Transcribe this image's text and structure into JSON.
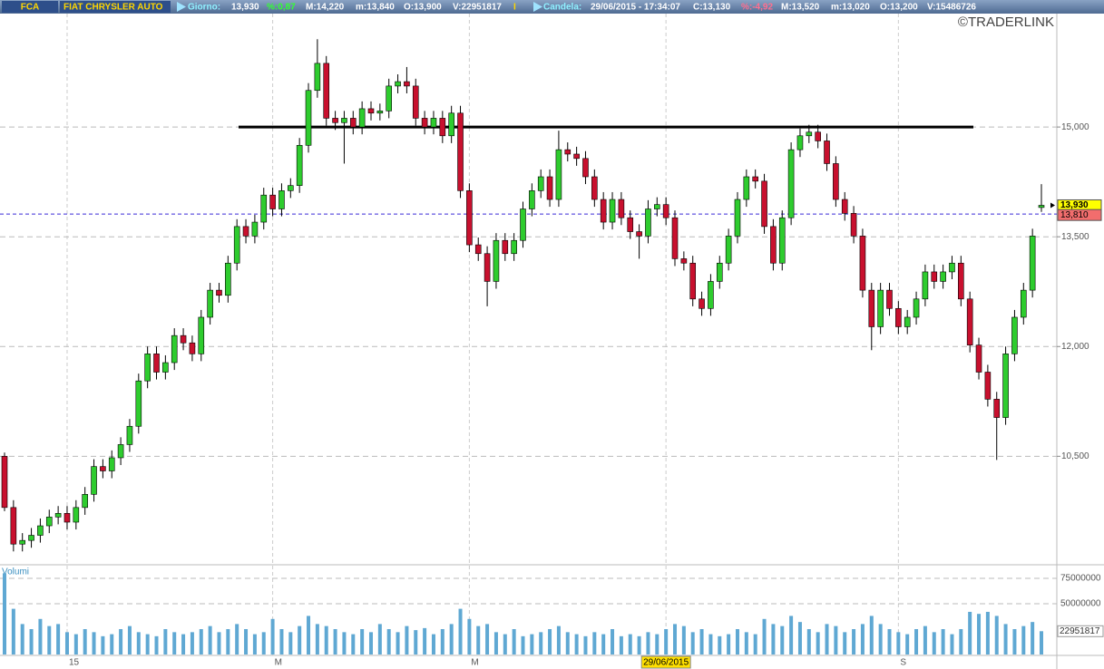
{
  "header": {
    "items": [
      {
        "text": "FCA",
        "color": "#ffd700"
      },
      {
        "text": "FIAT CHRYSLER AUTO",
        "color": "#ffd700"
      },
      {
        "text": "Giorno:",
        "color": "#8ff0ff"
      },
      {
        "text": "13,930",
        "color": "#ffffff"
      },
      {
        "text": "%:0,87",
        "color": "#33ff33"
      },
      {
        "text": "M:14,220",
        "color": "#ffffff"
      },
      {
        "text": "m:13,840",
        "color": "#ffffff"
      },
      {
        "text": "O:13,900",
        "color": "#ffffff"
      },
      {
        "text": "V:22951817",
        "color": "#ffffff"
      },
      {
        "text": "I",
        "color": "#ffd700"
      },
      {
        "text": "Candela:",
        "color": "#8ff0ff"
      },
      {
        "text": "29/06/2015 - 17:34:07",
        "color": "#ffffff"
      },
      {
        "text": "C:13,130",
        "color": "#ffffff"
      },
      {
        "text": "%:-4,92",
        "color": "#ff6f8f"
      },
      {
        "text": "M:13,520",
        "color": "#ffffff"
      },
      {
        "text": "m:13,020",
        "color": "#ffffff"
      },
      {
        "text": "O:13,200",
        "color": "#ffffff"
      },
      {
        "text": "V:15486726",
        "color": "#ffffff"
      }
    ]
  },
  "chart_data": [
    {
      "type": "candlestick",
      "watermark": "©TRADERLINK",
      "categories": [
        null,
        null,
        null,
        null,
        null,
        null,
        null,
        "15",
        null,
        null,
        null,
        null,
        null,
        null,
        null,
        null,
        null,
        null,
        null,
        null,
        null,
        null,
        null,
        null,
        null,
        null,
        null,
        null,
        null,
        null,
        "M",
        null,
        null,
        null,
        null,
        null,
        null,
        null,
        null,
        null,
        null,
        null,
        null,
        null,
        null,
        null,
        null,
        null,
        null,
        null,
        null,
        null,
        "M",
        null,
        null,
        null,
        null,
        null,
        null,
        null,
        null,
        null,
        null,
        null,
        null,
        null,
        null,
        null,
        null,
        null,
        null,
        null,
        null,
        null,
        "29/06/2015",
        null,
        null,
        null,
        null,
        null,
        null,
        null,
        null,
        null,
        null,
        null,
        null,
        null,
        null,
        null,
        null,
        null,
        null,
        null,
        null,
        null,
        null,
        null,
        null,
        null,
        "S",
        null,
        null,
        null,
        null,
        null,
        null,
        null,
        null,
        null,
        null,
        null,
        null,
        null,
        null,
        null,
        null
      ],
      "ohlc": [
        [
          10.5,
          10.55,
          9.75,
          9.8
        ],
        [
          9.8,
          9.9,
          9.2,
          9.3
        ],
        [
          9.3,
          9.45,
          9.2,
          9.35
        ],
        [
          9.35,
          9.52,
          9.25,
          9.42
        ],
        [
          9.42,
          9.65,
          9.32,
          9.55
        ],
        [
          9.55,
          9.77,
          9.45,
          9.67
        ],
        [
          9.67,
          9.82,
          9.57,
          9.72
        ],
        [
          9.72,
          9.82,
          9.5,
          9.6
        ],
        [
          9.6,
          9.9,
          9.5,
          9.8
        ],
        [
          9.8,
          10.08,
          9.7,
          9.98
        ],
        [
          9.98,
          10.46,
          9.88,
          10.36
        ],
        [
          10.36,
          10.46,
          10.2,
          10.3
        ],
        [
          10.3,
          10.58,
          10.2,
          10.48
        ],
        [
          10.48,
          10.76,
          10.38,
          10.66
        ],
        [
          10.66,
          11.01,
          10.56,
          10.91
        ],
        [
          10.91,
          11.63,
          10.81,
          11.53
        ],
        [
          11.53,
          12.0,
          11.43,
          11.9
        ],
        [
          11.9,
          12.0,
          11.55,
          11.65
        ],
        [
          11.65,
          11.88,
          11.55,
          11.78
        ],
        [
          11.78,
          12.25,
          11.68,
          12.15
        ],
        [
          12.15,
          12.25,
          11.95,
          12.05
        ],
        [
          12.05,
          12.15,
          11.8,
          11.9
        ],
        [
          11.9,
          12.5,
          11.8,
          12.4
        ],
        [
          12.4,
          12.87,
          12.3,
          12.77
        ],
        [
          12.77,
          12.87,
          12.6,
          12.7
        ],
        [
          12.7,
          13.24,
          12.6,
          13.14
        ],
        [
          13.14,
          13.74,
          13.04,
          13.64
        ],
        [
          13.64,
          13.74,
          13.41,
          13.51
        ],
        [
          13.51,
          13.8,
          13.41,
          13.7
        ],
        [
          13.7,
          14.17,
          13.6,
          14.07
        ],
        [
          14.07,
          14.17,
          13.78,
          13.88
        ],
        [
          13.88,
          14.23,
          13.78,
          14.13
        ],
        [
          14.13,
          14.3,
          14.03,
          14.2
        ],
        [
          14.2,
          14.85,
          14.1,
          14.75
        ],
        [
          14.75,
          15.6,
          14.65,
          15.5
        ],
        [
          15.5,
          16.2,
          15.4,
          15.87
        ],
        [
          15.87,
          15.97,
          15.02,
          15.12
        ],
        [
          15.12,
          15.22,
          14.96,
          15.06
        ],
        [
          15.06,
          15.22,
          14.5,
          15.12
        ],
        [
          15.12,
          15.22,
          14.9,
          15.0
        ],
        [
          15.0,
          15.35,
          14.9,
          15.25
        ],
        [
          15.25,
          15.35,
          15.09,
          15.19
        ],
        [
          15.19,
          15.32,
          15.09,
          15.22
        ],
        [
          15.22,
          15.66,
          15.12,
          15.56
        ],
        [
          15.56,
          15.72,
          15.46,
          15.62
        ],
        [
          15.62,
          15.82,
          15.46,
          15.56
        ],
        [
          15.56,
          15.66,
          15.02,
          15.12
        ],
        [
          15.12,
          15.22,
          14.9,
          15.0
        ],
        [
          15.0,
          15.22,
          14.9,
          15.12
        ],
        [
          15.12,
          15.22,
          14.78,
          14.88
        ],
        [
          14.88,
          15.29,
          14.78,
          15.19
        ],
        [
          15.19,
          15.29,
          14.03,
          14.13
        ],
        [
          14.13,
          14.23,
          13.29,
          13.39
        ],
        [
          13.39,
          13.49,
          13.17,
          13.27
        ],
        [
          13.27,
          13.37,
          12.55,
          12.89
        ],
        [
          12.89,
          13.55,
          12.79,
          13.45
        ],
        [
          13.45,
          13.55,
          13.17,
          13.27
        ],
        [
          13.27,
          13.55,
          13.17,
          13.45
        ],
        [
          13.45,
          13.98,
          13.35,
          13.88
        ],
        [
          13.88,
          14.23,
          13.78,
          14.13
        ],
        [
          14.13,
          14.42,
          14.03,
          14.32
        ],
        [
          14.32,
          14.42,
          13.91,
          14.01
        ],
        [
          14.01,
          14.95,
          13.91,
          14.69
        ],
        [
          14.69,
          14.79,
          14.53,
          14.63
        ],
        [
          14.63,
          14.73,
          14.47,
          14.57
        ],
        [
          14.57,
          14.67,
          14.22,
          14.32
        ],
        [
          14.32,
          14.42,
          13.91,
          14.01
        ],
        [
          14.01,
          14.11,
          13.6,
          13.7
        ],
        [
          13.7,
          14.11,
          13.6,
          14.01
        ],
        [
          14.01,
          14.11,
          13.66,
          13.76
        ],
        [
          13.76,
          13.86,
          13.47,
          13.57
        ],
        [
          13.57,
          13.67,
          13.2,
          13.51
        ],
        [
          13.51,
          14.0,
          13.41,
          13.88
        ],
        [
          13.88,
          14.04,
          13.78,
          13.94
        ],
        [
          13.94,
          14.04,
          13.66,
          13.76
        ],
        [
          13.76,
          13.86,
          13.1,
          13.2
        ],
        [
          13.2,
          13.3,
          13.04,
          13.14
        ],
        [
          13.14,
          13.24,
          12.55,
          12.65
        ],
        [
          12.65,
          12.75,
          12.42,
          12.52
        ],
        [
          12.52,
          12.99,
          12.42,
          12.89
        ],
        [
          12.89,
          13.24,
          12.79,
          13.14
        ],
        [
          13.14,
          13.61,
          13.04,
          13.51
        ],
        [
          13.51,
          14.11,
          13.41,
          14.01
        ],
        [
          14.01,
          14.42,
          13.91,
          14.32
        ],
        [
          14.32,
          14.42,
          14.16,
          14.26
        ],
        [
          14.26,
          14.36,
          13.54,
          13.64
        ],
        [
          13.64,
          13.74,
          13.04,
          13.14
        ],
        [
          13.14,
          13.86,
          13.04,
          13.76
        ],
        [
          13.76,
          14.79,
          13.66,
          14.69
        ],
        [
          14.69,
          14.98,
          14.59,
          14.88
        ],
        [
          14.88,
          15.03,
          14.78,
          14.93
        ],
        [
          14.93,
          15.03,
          14.71,
          14.81
        ],
        [
          14.81,
          14.91,
          14.4,
          14.5
        ],
        [
          14.5,
          14.6,
          13.91,
          14.01
        ],
        [
          14.01,
          14.11,
          13.72,
          13.82
        ],
        [
          13.82,
          13.92,
          13.41,
          13.51
        ],
        [
          13.51,
          13.61,
          12.67,
          12.77
        ],
        [
          12.77,
          12.87,
          11.95,
          12.27
        ],
        [
          12.27,
          12.87,
          12.17,
          12.77
        ],
        [
          12.77,
          12.87,
          12.42,
          12.52
        ],
        [
          12.52,
          12.62,
          12.17,
          12.27
        ],
        [
          12.27,
          12.5,
          12.17,
          12.4
        ],
        [
          12.4,
          12.75,
          12.3,
          12.65
        ],
        [
          12.65,
          13.12,
          12.55,
          13.02
        ],
        [
          13.02,
          13.12,
          12.79,
          12.89
        ],
        [
          12.89,
          13.12,
          12.79,
          13.02
        ],
        [
          13.02,
          13.24,
          12.92,
          13.14
        ],
        [
          13.14,
          13.24,
          12.55,
          12.65
        ],
        [
          12.65,
          12.75,
          11.92,
          12.02
        ],
        [
          12.02,
          12.12,
          11.55,
          11.65
        ],
        [
          11.65,
          11.75,
          11.18,
          11.28
        ],
        [
          11.28,
          11.38,
          10.45,
          11.03
        ],
        [
          11.03,
          12.0,
          10.93,
          11.9
        ],
        [
          11.9,
          12.5,
          11.8,
          12.4
        ],
        [
          12.4,
          12.87,
          12.3,
          12.77
        ],
        [
          12.77,
          13.61,
          12.67,
          13.51
        ],
        [
          13.9,
          14.22,
          13.84,
          13.93
        ]
      ],
      "up_color": "#2ecc2e",
      "down_color": "#c8102e",
      "ylim": [
        9.03,
        16.55
      ],
      "yticks": [
        {
          "value": 10.5,
          "label": "10,500"
        },
        {
          "value": 12,
          "label": "12,000"
        },
        {
          "value": 13.5,
          "label": "13,500"
        },
        {
          "value": 15,
          "label": "15,000"
        }
      ],
      "grid": true,
      "resistance": 15,
      "last_price": {
        "value": 13.93,
        "label": "13,930"
      },
      "reference": {
        "value": 13.81,
        "label": "13,810"
      }
    },
    {
      "type": "bar",
      "title": "Volumi",
      "color": "#5fa8d3",
      "values": [
        80000000,
        45000000,
        30000000,
        25000000,
        35000000,
        28000000,
        30000000,
        22000000,
        20000000,
        25000000,
        22000000,
        18000000,
        20000000,
        25000000,
        28000000,
        22000000,
        20000000,
        18000000,
        25000000,
        22000000,
        20000000,
        22000000,
        25000000,
        28000000,
        22000000,
        25000000,
        30000000,
        25000000,
        20000000,
        22000000,
        35000000,
        25000000,
        22000000,
        28000000,
        38000000,
        30000000,
        28000000,
        25000000,
        22000000,
        20000000,
        25000000,
        22000000,
        30000000,
        25000000,
        22000000,
        28000000,
        24000000,
        26000000,
        20000000,
        25000000,
        30000000,
        45000000,
        35000000,
        28000000,
        30000000,
        22000000,
        20000000,
        25000000,
        18000000,
        20000000,
        22000000,
        25000000,
        28000000,
        22000000,
        20000000,
        18000000,
        22000000,
        20000000,
        25000000,
        18000000,
        20000000,
        18000000,
        22000000,
        20000000,
        25000000,
        30000000,
        28000000,
        22000000,
        25000000,
        20000000,
        18000000,
        20000000,
        25000000,
        22000000,
        20000000,
        35000000,
        30000000,
        28000000,
        38000000,
        32000000,
        25000000,
        22000000,
        30000000,
        28000000,
        22000000,
        25000000,
        30000000,
        38000000,
        30000000,
        25000000,
        22000000,
        20000000,
        25000000,
        28000000,
        22000000,
        25000000,
        20000000,
        25000000,
        42000000,
        40000000,
        42000000,
        38000000,
        30000000,
        25000000,
        28000000,
        32000000,
        22951817
      ],
      "ylim": [
        0,
        87500000
      ],
      "yticks": [
        50000000,
        75000000
      ],
      "last_value": 22951817
    }
  ]
}
